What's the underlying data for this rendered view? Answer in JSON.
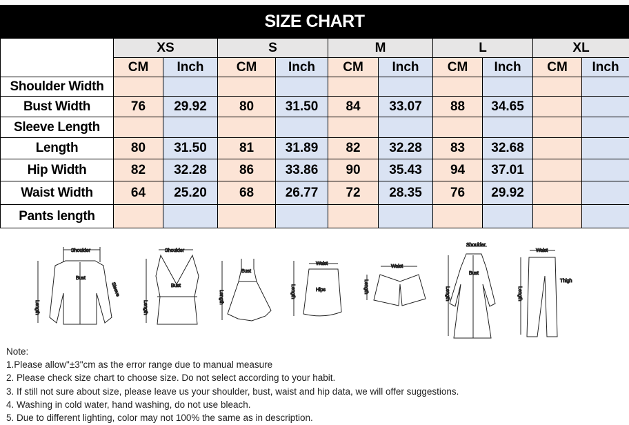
{
  "title": "SIZE CHART",
  "sizes": [
    "XS",
    "S",
    "M",
    "L",
    "XL"
  ],
  "units": {
    "cm": "CM",
    "inch": "Inch"
  },
  "rows": [
    {
      "label": "Shoulder Width",
      "values": [
        "",
        "",
        "",
        "",
        "",
        "",
        "",
        "",
        "",
        ""
      ]
    },
    {
      "label": "Bust Width",
      "values": [
        "76",
        "29.92",
        "80",
        "31.50",
        "84",
        "33.07",
        "88",
        "34.65",
        "",
        ""
      ]
    },
    {
      "label": "Sleeve Length",
      "values": [
        "",
        "",
        "",
        "",
        "",
        "",
        "",
        "",
        "",
        ""
      ]
    },
    {
      "label": "Length",
      "values": [
        "80",
        "31.50",
        "81",
        "31.89",
        "82",
        "32.28",
        "83",
        "32.68",
        "",
        ""
      ]
    },
    {
      "label": "Hip Width",
      "values": [
        "82",
        "32.28",
        "86",
        "33.86",
        "90",
        "35.43",
        "94",
        "37.01",
        "",
        ""
      ]
    },
    {
      "label": "Waist Width",
      "values": [
        "64",
        "25.20",
        "68",
        "26.77",
        "72",
        "28.35",
        "76",
        "29.92",
        "",
        ""
      ]
    },
    {
      "label": "Pants length",
      "values": [
        "",
        "",
        "",
        "",
        "",
        "",
        "",
        "",
        "",
        ""
      ]
    }
  ],
  "illustrations": {
    "labels": {
      "shoulder": "Shoulder",
      "bust": "Bust",
      "length": "Length",
      "sleeve": "Sleeve",
      "waist": "Waist",
      "hips": "Hips",
      "thigh": "Thigh"
    }
  },
  "notes": {
    "heading": "Note:",
    "items": [
      "1.Please allow\"±3\"cm as the error range due to manual measure",
      "2. Please check size chart to choose size. Do not select according to your habit.",
      "3. If still not sure about size, please leave us your shoulder, bust, waist and hip data, we will offer suggestions.",
      "4. Washing in cold water, hand washing, do not use bleach.",
      "5. Due to different lighting, color may not 100% the same as in description."
    ]
  }
}
